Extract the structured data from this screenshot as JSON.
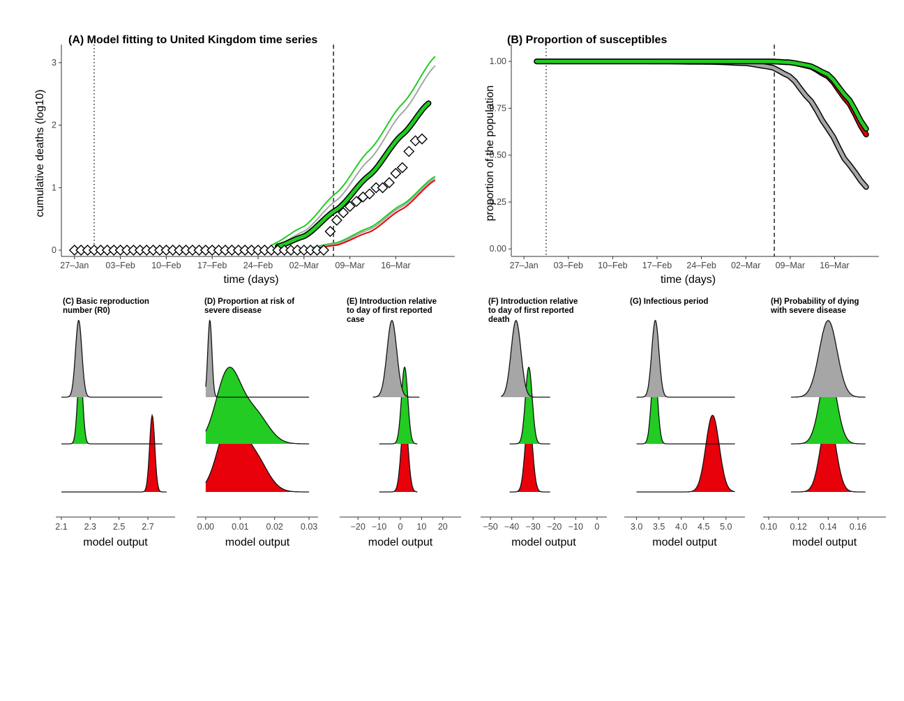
{
  "colors": {
    "green": "#22cc22",
    "red": "#e8000b",
    "grey": "#a6a6a6",
    "dark": "#000000"
  },
  "chart_data": [
    {
      "id": "A",
      "type": "line",
      "title": "(A) Model fitting to United Kingdom time series",
      "xlabel": "time (days)",
      "ylabel": "cumulative deaths (log10)",
      "x_ticks": [
        "27–Jan",
        "03–Feb",
        "10–Feb",
        "17–Feb",
        "24–Feb",
        "02–Mar",
        "09–Mar",
        "16–Mar"
      ],
      "x_tick_days": [
        0,
        7,
        14,
        21,
        28,
        35,
        42,
        49
      ],
      "x_tick_units": "days since 27–Jan",
      "y_ticks": [
        "0",
        "1",
        "2",
        "3"
      ],
      "xlim": [
        -2,
        58
      ],
      "ylim": [
        -0.1,
        3.2
      ],
      "vlines": [
        {
          "style": "dotted",
          "x": 3
        },
        {
          "style": "dashed",
          "x": 39.5
        }
      ],
      "series": [
        {
          "color": "green",
          "style": "thin",
          "start": 30,
          "y0": 0.08,
          "x": [
            30,
            35,
            40,
            45,
            50,
            55
          ],
          "y": [
            0.08,
            0.38,
            0.92,
            1.6,
            2.34,
            3.1
          ]
        },
        {
          "color": "grey",
          "style": "thin",
          "start": 31,
          "y0": 0.08,
          "x": [
            31,
            35,
            40,
            45,
            50,
            55
          ],
          "y": [
            0.08,
            0.3,
            0.8,
            1.45,
            2.2,
            2.95
          ]
        },
        {
          "color": "grey",
          "style": "thick",
          "start": 31,
          "y0": 0.06,
          "x": [
            31,
            35,
            40,
            45,
            50,
            54
          ],
          "y": [
            0.06,
            0.22,
            0.65,
            1.2,
            1.85,
            2.35
          ]
        },
        {
          "color": "green",
          "style": "thick",
          "start": 31,
          "y0": 0.06,
          "x": [
            31,
            35,
            40,
            45,
            50,
            54
          ],
          "y": [
            0.06,
            0.22,
            0.65,
            1.2,
            1.85,
            2.35
          ]
        },
        {
          "color": "green",
          "style": "thin",
          "start": 35,
          "y0": 0.02,
          "x": [
            35,
            40,
            45,
            50,
            55
          ],
          "y": [
            0.02,
            0.12,
            0.36,
            0.73,
            1.18
          ]
        },
        {
          "color": "grey",
          "style": "thin",
          "start": 35.5,
          "y0": 0.02,
          "x": [
            35.5,
            40,
            45,
            50,
            55
          ],
          "y": [
            0.02,
            0.1,
            0.33,
            0.7,
            1.15
          ]
        },
        {
          "color": "red",
          "style": "thin",
          "start": 36,
          "y0": 0.02,
          "x": [
            36,
            40,
            45,
            50,
            55
          ],
          "y": [
            0.02,
            0.08,
            0.29,
            0.66,
            1.12
          ]
        }
      ],
      "observed_points": {
        "x": [
          0,
          1,
          2,
          3,
          4,
          5,
          6,
          7,
          8,
          9,
          10,
          11,
          12,
          13,
          14,
          15,
          16,
          17,
          18,
          19,
          20,
          21,
          22,
          23,
          24,
          25,
          26,
          27,
          28,
          29,
          30,
          31,
          32,
          33,
          34,
          35,
          36,
          37,
          38,
          39,
          40,
          41,
          42,
          43,
          44,
          45,
          46,
          47,
          48,
          49,
          50,
          51,
          52,
          53
        ],
        "y": [
          0,
          0,
          0,
          0,
          0,
          0,
          0,
          0,
          0,
          0,
          0,
          0,
          0,
          0,
          0,
          0,
          0,
          0,
          0,
          0,
          0,
          0,
          0,
          0,
          0,
          0,
          0,
          0,
          0,
          0,
          0,
          0,
          0,
          0,
          0,
          0,
          0,
          0,
          0,
          0.3,
          0.48,
          0.6,
          0.7,
          0.78,
          0.85,
          0.9,
          1.0,
          1.0,
          1.08,
          1.23,
          1.32,
          1.58,
          1.75,
          1.78
        ]
      }
    },
    {
      "id": "B",
      "type": "line",
      "title": "(B) Proportion of susceptibles",
      "xlabel": "time (days)",
      "ylabel": "proportion of the population",
      "x_ticks": [
        "27–Jan",
        "03–Feb",
        "10–Feb",
        "17–Feb",
        "24–Feb",
        "02–Mar",
        "09–Mar",
        "16–Mar"
      ],
      "x_tick_days": [
        0,
        7,
        14,
        21,
        28,
        35,
        42,
        49
      ],
      "x_tick_units": "days since 27–Jan",
      "y_ticks": [
        "0.00",
        "0.25",
        "0.50",
        "0.75",
        "1.00"
      ],
      "xlim": [
        -2,
        56
      ],
      "ylim": [
        -0.04,
        1.06
      ],
      "vlines": [
        {
          "style": "dotted",
          "x": 3.5
        },
        {
          "style": "dashed",
          "x": 39.5
        }
      ],
      "series": [
        {
          "color": "grey",
          "style": "thick",
          "x": [
            2,
            10,
            20,
            30,
            35,
            39,
            42,
            45,
            48,
            51,
            54
          ],
          "y": [
            1.0,
            1.0,
            1.0,
            0.997,
            0.99,
            0.97,
            0.92,
            0.8,
            0.64,
            0.46,
            0.33
          ]
        },
        {
          "color": "red",
          "style": "thick",
          "x": [
            2,
            10,
            20,
            30,
            35,
            39,
            42,
            45,
            48,
            51,
            54
          ],
          "y": [
            1.0,
            1.0,
            1.0,
            1.0,
            1.0,
            1.0,
            0.995,
            0.975,
            0.92,
            0.79,
            0.61
          ]
        },
        {
          "color": "green",
          "style": "thick",
          "x": [
            2,
            10,
            20,
            30,
            35,
            39,
            42,
            45,
            48,
            51,
            54
          ],
          "y": [
            1.0,
            1.0,
            1.0,
            1.0,
            1.0,
            1.0,
            0.995,
            0.978,
            0.93,
            0.81,
            0.64
          ]
        }
      ]
    },
    {
      "id": "C",
      "type": "area",
      "title": "(C) Basic reproduction number (R0)",
      "xlabel": "model output",
      "x_ticks": [
        "2.1",
        "2.3",
        "2.5",
        "2.7"
      ],
      "x_tick_values": [
        2.1,
        2.3,
        2.5,
        2.7
      ],
      "xlim": [
        2.1,
        2.85
      ],
      "series": [
        {
          "color": "grey",
          "baseline_extent": [
            2.1,
            2.8
          ],
          "peaks": [
            {
              "mean": 2.22,
              "sd": 0.022,
              "w": 1.0
            }
          ]
        },
        {
          "color": "green",
          "baseline_extent": [
            2.1,
            2.8
          ],
          "peaks": [
            {
              "mean": 2.23,
              "sd": 0.018,
              "w": 1.0
            }
          ]
        },
        {
          "color": "red",
          "baseline_extent": [
            2.1,
            2.83
          ],
          "peaks": [
            {
              "mean": 2.73,
              "sd": 0.018,
              "w": 1.0
            }
          ]
        }
      ]
    },
    {
      "id": "D",
      "type": "area",
      "title": "(D) Proportion at risk of severe disease",
      "xlabel": "model output",
      "x_ticks": [
        "0.00",
        "0.01",
        "0.02",
        "0.03"
      ],
      "x_tick_values": [
        0.0,
        0.01,
        0.02,
        0.03
      ],
      "xlim": [
        -0.001,
        0.031
      ],
      "series": [
        {
          "color": "grey",
          "baseline_extent": [
            0.0,
            0.03
          ],
          "peaks": [
            {
              "mean": 0.0012,
              "sd": 0.0006,
              "w": 1.0
            }
          ]
        },
        {
          "color": "green",
          "baseline_extent": [
            0.0,
            0.03
          ],
          "peaks": [
            {
              "mean": 0.0065,
              "sd": 0.0035,
              "w": 0.8
            },
            {
              "mean": 0.014,
              "sd": 0.004,
              "w": 0.35
            }
          ]
        },
        {
          "color": "red",
          "baseline_extent": [
            0.0,
            0.03
          ],
          "peaks": [
            {
              "mean": 0.007,
              "sd": 0.0035,
              "w": 0.8
            },
            {
              "mean": 0.014,
              "sd": 0.0038,
              "w": 0.4
            }
          ]
        }
      ]
    },
    {
      "id": "E",
      "type": "area",
      "title": "(E) Introduction relative to day of first reported case",
      "xlabel": "model output",
      "x_ticks": [
        "−20",
        "−10",
        "0",
        "10",
        "20"
      ],
      "x_tick_values": [
        -20,
        -10,
        0,
        10,
        20
      ],
      "xlim": [
        -26,
        26
      ],
      "series": [
        {
          "color": "grey",
          "baseline_extent": [
            -13,
            9
          ],
          "peaks": [
            {
              "mean": -4,
              "sd": 2.3,
              "w": 1.0
            }
          ]
        },
        {
          "color": "green",
          "baseline_extent": [
            -10,
            8
          ],
          "peaks": [
            {
              "mean": 2,
              "sd": 1.5,
              "w": 1.0
            }
          ]
        },
        {
          "color": "red",
          "baseline_extent": [
            -10,
            8
          ],
          "peaks": [
            {
              "mean": 2,
              "sd": 1.6,
              "w": 1.0
            }
          ]
        }
      ]
    },
    {
      "id": "F",
      "type": "area",
      "title": "(F) Introduction relative to day of first reported death",
      "xlabel": "model output",
      "x_ticks": [
        "−50",
        "−40",
        "−30",
        "−20",
        "−10",
        "0"
      ],
      "x_tick_values": [
        -50,
        -40,
        -30,
        -20,
        -10,
        0
      ],
      "xlim": [
        -52,
        2
      ],
      "series": [
        {
          "color": "grey",
          "baseline_extent": [
            -45,
            -22
          ],
          "peaks": [
            {
              "mean": -38,
              "sd": 2.3,
              "w": 1.0
            }
          ]
        },
        {
          "color": "green",
          "baseline_extent": [
            -41,
            -22
          ],
          "peaks": [
            {
              "mean": -32,
              "sd": 1.6,
              "w": 1.0
            }
          ]
        },
        {
          "color": "red",
          "baseline_extent": [
            -41,
            -22
          ],
          "peaks": [
            {
              "mean": -32,
              "sd": 1.7,
              "w": 1.0
            }
          ]
        }
      ]
    },
    {
      "id": "G",
      "type": "area",
      "title": "(G) Infectious period",
      "xlabel": "model output",
      "x_ticks": [
        "3.0",
        "3.5",
        "4.0",
        "4.5",
        "5.0"
      ],
      "x_tick_values": [
        3.0,
        3.5,
        4.0,
        4.5,
        5.0
      ],
      "xlim": [
        2.85,
        5.3
      ],
      "series": [
        {
          "color": "grey",
          "baseline_extent": [
            3.0,
            5.2
          ],
          "peaks": [
            {
              "mean": 3.42,
              "sd": 0.08,
              "w": 1.0
            }
          ]
        },
        {
          "color": "green",
          "baseline_extent": [
            3.0,
            5.2
          ],
          "peaks": [
            {
              "mean": 3.4,
              "sd": 0.07,
              "w": 1.0
            }
          ]
        },
        {
          "color": "red",
          "baseline_extent": [
            3.0,
            5.2
          ],
          "peaks": [
            {
              "mean": 4.7,
              "sd": 0.15,
              "w": 1.0
            }
          ]
        }
      ]
    },
    {
      "id": "H",
      "type": "area",
      "title": "(H) Probability of dying with severe disease",
      "xlabel": "model output",
      "x_ticks": [
        "0.10",
        "0.12",
        "0.14",
        "0.16"
      ],
      "x_tick_values": [
        0.1,
        0.12,
        0.14,
        0.16
      ],
      "xlim": [
        0.1,
        0.175
      ],
      "series": [
        {
          "color": "grey",
          "baseline_extent": [
            0.115,
            0.165
          ],
          "peaks": [
            {
              "mean": 0.14,
              "sd": 0.006,
              "w": 1.0
            }
          ]
        },
        {
          "color": "green",
          "baseline_extent": [
            0.115,
            0.165
          ],
          "peaks": [
            {
              "mean": 0.14,
              "sd": 0.0055,
              "w": 1.0
            }
          ]
        },
        {
          "color": "red",
          "baseline_extent": [
            0.115,
            0.165
          ],
          "peaks": [
            {
              "mean": 0.14,
              "sd": 0.005,
              "w": 1.0
            }
          ]
        }
      ]
    }
  ]
}
